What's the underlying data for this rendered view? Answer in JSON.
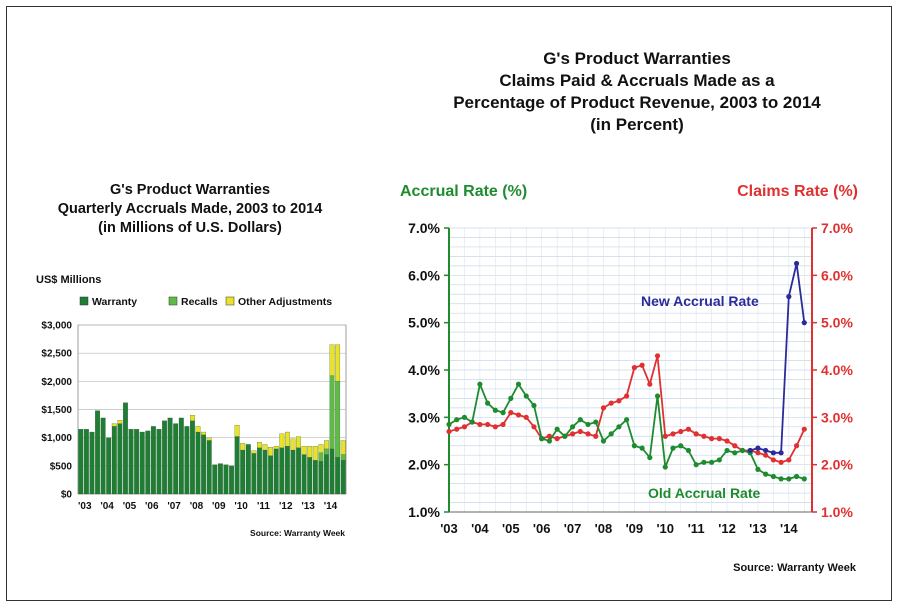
{
  "chart_data": [
    {
      "type": "bar",
      "stacked": true,
      "title": "G's Product Warranties",
      "subtitle": [
        "Quarterly Accruals Made, 2003 to 2014",
        "(in Millions of U.S. Dollars)"
      ],
      "ylabel": "US$ Millions",
      "ylim": [
        0,
        3000
      ],
      "yticks": [
        "$0",
        "$500",
        "$1,000",
        "$1,500",
        "$2,000",
        "$2,500",
        "$3,000"
      ],
      "xtick_labels": [
        "'03",
        "'04",
        "'05",
        "'06",
        "'07",
        "'08",
        "'09",
        "'10",
        "'11",
        "'12",
        "'13",
        "'14"
      ],
      "grid": true,
      "legend": "top",
      "source": "Source: Warranty Week",
      "series": [
        {
          "name": "Warranty",
          "color": "#1e7e34",
          "values": [
            1150,
            1150,
            1100,
            1480,
            1350,
            1000,
            1200,
            1250,
            1620,
            1150,
            1150,
            1100,
            1120,
            1200,
            1150,
            1300,
            1350,
            1250,
            1350,
            1200,
            1300,
            1100,
            1050,
            950,
            520,
            540,
            520,
            500,
            1020,
            780,
            880,
            720,
            820,
            780,
            680,
            800,
            820,
            850,
            780,
            820,
            700,
            650,
            600,
            580,
            700,
            800,
            650,
            600
          ]
        },
        {
          "name": "Recalls",
          "color": "#5fba46",
          "values": [
            0,
            0,
            0,
            0,
            0,
            0,
            0,
            0,
            0,
            0,
            0,
            0,
            0,
            0,
            0,
            0,
            0,
            0,
            0,
            0,
            0,
            0,
            0,
            0,
            0,
            0,
            0,
            0,
            0,
            0,
            0,
            0,
            0,
            0,
            0,
            0,
            0,
            0,
            0,
            0,
            0,
            0,
            0,
            150,
            100,
            1300,
            1350,
            100
          ]
        },
        {
          "name": "Other Adjustments",
          "color": "#e8e32a",
          "values": [
            0,
            0,
            0,
            0,
            0,
            0,
            50,
            60,
            0,
            0,
            0,
            0,
            0,
            0,
            0,
            0,
            0,
            0,
            0,
            0,
            100,
            100,
            50,
            50,
            0,
            0,
            0,
            0,
            200,
            120,
            0,
            50,
            100,
            100,
            150,
            50,
            250,
            250,
            200,
            200,
            150,
            200,
            250,
            150,
            150,
            550,
            650,
            250
          ]
        }
      ]
    },
    {
      "type": "line",
      "title": "G's Product Warranties",
      "subtitle": [
        "Claims Paid & Accruals Made as a",
        "Percentage of Product Revenue, 2003 to 2014",
        "(in Percent)"
      ],
      "ylabel_left": "Accrual Rate (%)",
      "ylabel_right": "Claims Rate (%)",
      "ylim": [
        1.0,
        7.0
      ],
      "yticks": [
        "1.0%",
        "2.0%",
        "3.0%",
        "4.0%",
        "5.0%",
        "6.0%",
        "7.0%"
      ],
      "xtick_labels": [
        "'03",
        "'04",
        "'05",
        "'06",
        "'07",
        "'08",
        "'09",
        "'10",
        "'11",
        "'12",
        "'13",
        "'14"
      ],
      "xlim": [
        2003.0,
        2014.75
      ],
      "grid": true,
      "source": "Source: Warranty Week",
      "annotations": [
        {
          "text": "New Accrual Rate",
          "color": "#2a2a9a"
        },
        {
          "text": "Old Accrual Rate",
          "color": "#1e8c2e"
        }
      ],
      "series": [
        {
          "name": "Claims Rate",
          "color": "#e03030",
          "axis": "right",
          "x": [
            2003.0,
            2003.25,
            2003.5,
            2003.75,
            2004.0,
            2004.25,
            2004.5,
            2004.75,
            2005.0,
            2005.25,
            2005.5,
            2005.75,
            2006.0,
            2006.25,
            2006.5,
            2006.75,
            2007.0,
            2007.25,
            2007.5,
            2007.75,
            2008.0,
            2008.25,
            2008.5,
            2008.75,
            2009.0,
            2009.25,
            2009.5,
            2009.75,
            2010.0,
            2010.25,
            2010.5,
            2010.75,
            2011.0,
            2011.25,
            2011.5,
            2011.75,
            2012.0,
            2012.25,
            2012.5,
            2012.75,
            2013.0,
            2013.25,
            2013.5,
            2013.75,
            2014.0,
            2014.25,
            2014.5
          ],
          "y": [
            2.7,
            2.75,
            2.8,
            2.9,
            2.85,
            2.85,
            2.8,
            2.85,
            3.1,
            3.05,
            3.0,
            2.8,
            2.55,
            2.6,
            2.55,
            2.6,
            2.65,
            2.7,
            2.65,
            2.6,
            3.2,
            3.3,
            3.35,
            3.45,
            4.05,
            4.1,
            3.7,
            4.3,
            2.6,
            2.65,
            2.7,
            2.75,
            2.65,
            2.6,
            2.55,
            2.55,
            2.5,
            2.4,
            2.3,
            2.3,
            2.25,
            2.2,
            2.1,
            2.05,
            2.1,
            2.4,
            2.75
          ]
        },
        {
          "name": "Old Accrual Rate",
          "color": "#1e8c2e",
          "axis": "left",
          "x": [
            2003.0,
            2003.25,
            2003.5,
            2003.75,
            2004.0,
            2004.25,
            2004.5,
            2004.75,
            2005.0,
            2005.25,
            2005.5,
            2005.75,
            2006.0,
            2006.25,
            2006.5,
            2006.75,
            2007.0,
            2007.25,
            2007.5,
            2007.75,
            2008.0,
            2008.25,
            2008.5,
            2008.75,
            2009.0,
            2009.25,
            2009.5,
            2009.75,
            2010.0,
            2010.25,
            2010.5,
            2010.75,
            2011.0,
            2011.25,
            2011.5,
            2011.75,
            2012.0,
            2012.25,
            2012.5,
            2012.75,
            2013.0,
            2013.25,
            2013.5,
            2013.75,
            2014.0,
            2014.25,
            2014.5
          ],
          "y": [
            2.85,
            2.95,
            3.0,
            2.9,
            3.7,
            3.3,
            3.15,
            3.1,
            3.4,
            3.7,
            3.45,
            3.25,
            2.55,
            2.5,
            2.75,
            2.6,
            2.8,
            2.95,
            2.85,
            2.9,
            2.5,
            2.65,
            2.8,
            2.95,
            2.4,
            2.35,
            2.15,
            3.45,
            1.95,
            2.35,
            2.4,
            2.3,
            2.0,
            2.05,
            2.05,
            2.1,
            2.3,
            2.25,
            2.3,
            2.25,
            1.9,
            1.8,
            1.75,
            1.7,
            1.7,
            1.75,
            1.7
          ]
        },
        {
          "name": "New Accrual Rate",
          "color": "#2a2a9a",
          "axis": "left",
          "x": [
            2012.75,
            2013.0,
            2013.25,
            2013.5,
            2013.75,
            2014.0,
            2014.25,
            2014.5
          ],
          "y": [
            2.3,
            2.35,
            2.3,
            2.25,
            2.25,
            5.55,
            6.25,
            5.0
          ]
        }
      ]
    }
  ]
}
